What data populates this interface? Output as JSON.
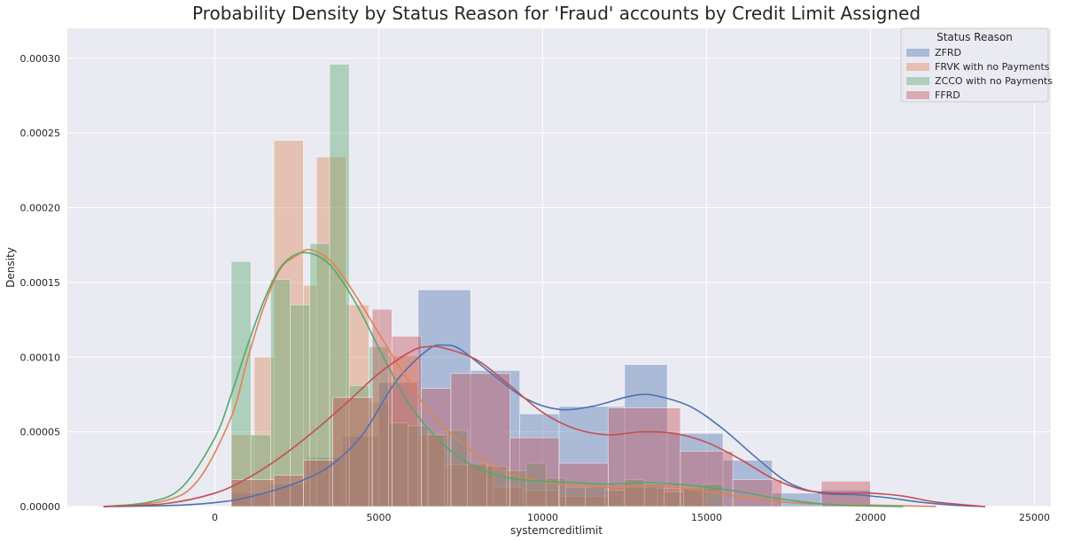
{
  "chart_data": {
    "type": "histogram_kde",
    "title": "Probability Density by Status Reason for 'Fraud' accounts by Credit Limit Assigned",
    "xlabel": "systemcreditlimit",
    "ylabel": "Density",
    "xlim": [
      -4500,
      25500
    ],
    "ylim": [
      0,
      0.00032
    ],
    "xticks": [
      0,
      5000,
      10000,
      15000,
      20000,
      25000
    ],
    "xtick_labels": [
      "0",
      "5000",
      "10000",
      "15000",
      "20000",
      "25000"
    ],
    "yticks": [
      0,
      5e-05,
      0.0001,
      0.00015,
      0.0002,
      0.00025,
      0.0003
    ],
    "ytick_labels": [
      "0.00000",
      "0.00005",
      "0.00010",
      "0.00015",
      "0.00020",
      "0.00025",
      "0.00030"
    ],
    "grid": true,
    "background": "#eaeaf2",
    "legend": {
      "title": "Status Reason",
      "position": "top-right"
    },
    "series": [
      {
        "name": "ZFRD",
        "color": "#4c72b0",
        "bins": [
          {
            "x0": 500,
            "x1": 1700,
            "y": 9e-06
          },
          {
            "x0": 1700,
            "x1": 2800,
            "y": 1.5e-05
          },
          {
            "x0": 2800,
            "x1": 3900,
            "y": 3.3e-05
          },
          {
            "x0": 3900,
            "x1": 5000,
            "y": 4.7e-05
          },
          {
            "x0": 5000,
            "x1": 6200,
            "y": 8.3e-05
          },
          {
            "x0": 6200,
            "x1": 7800,
            "y": 0.000145
          },
          {
            "x0": 7800,
            "x1": 9300,
            "y": 9.1e-05
          },
          {
            "x0": 9300,
            "x1": 10500,
            "y": 6.2e-05
          },
          {
            "x0": 10500,
            "x1": 12500,
            "y": 6.7e-05
          },
          {
            "x0": 12500,
            "x1": 13800,
            "y": 9.5e-05
          },
          {
            "x0": 13800,
            "x1": 15500,
            "y": 4.9e-05
          },
          {
            "x0": 15500,
            "x1": 17000,
            "y": 3.1e-05
          },
          {
            "x0": 17000,
            "x1": 18500,
            "y": 9e-06
          },
          {
            "x0": 18500,
            "x1": 20000,
            "y": 1.1e-05
          }
        ],
        "kde": {
          "x": [
            -3400,
            -1000,
            500,
            1500,
            2500,
            3500,
            4500,
            5500,
            6500,
            7000,
            7500,
            8500,
            9500,
            10500,
            11500,
            12500,
            13000,
            13500,
            14500,
            15500,
            16500,
            17500,
            18500,
            19500,
            20500,
            21500,
            22500,
            23500
          ],
          "y": [
            0,
            1e-06,
            4e-06,
            9e-06,
            1.6e-05,
            2.7e-05,
            4.8e-05,
            8.3e-05,
            0.000105,
            0.000108,
            0.000105,
            8.8e-05,
            7.2e-05,
            6.5e-05,
            6.7e-05,
            7.3e-05,
            7.5e-05,
            7.4e-05,
            6.7e-05,
            5.2e-05,
            3.3e-05,
            1.6e-05,
            9e-06,
            8e-06,
            6e-06,
            3e-06,
            1e-06,
            0
          ]
        }
      },
      {
        "name": "FRVK with no Payments",
        "color": "#dd8452",
        "bins": [
          {
            "x0": 500,
            "x1": 1200,
            "y": 4.8e-05
          },
          {
            "x0": 1200,
            "x1": 1800,
            "y": 0.0001
          },
          {
            "x0": 1800,
            "x1": 2700,
            "y": 0.000245
          },
          {
            "x0": 2700,
            "x1": 3100,
            "y": 0.000148
          },
          {
            "x0": 3100,
            "x1": 4000,
            "y": 0.000234
          },
          {
            "x0": 4000,
            "x1": 4700,
            "y": 0.000135
          },
          {
            "x0": 4700,
            "x1": 5300,
            "y": 7e-05
          },
          {
            "x0": 5300,
            "x1": 6200,
            "y": 0.000101
          },
          {
            "x0": 6200,
            "x1": 7000,
            "y": 4.8e-05
          },
          {
            "x0": 7000,
            "x1": 8500,
            "y": 2.8e-05
          },
          {
            "x0": 8500,
            "x1": 9400,
            "y": 1.3e-05
          },
          {
            "x0": 9400,
            "x1": 10500,
            "y": 1.1e-05
          },
          {
            "x0": 10500,
            "x1": 12000,
            "y": 7e-06
          },
          {
            "x0": 12000,
            "x1": 13500,
            "y": 1.3e-05
          },
          {
            "x0": 13500,
            "x1": 15000,
            "y": 1.2e-05
          }
        ],
        "kde": {
          "x": [
            -3400,
            -1500,
            -500,
            500,
            1000,
            1500,
            2000,
            2500,
            2900,
            3500,
            4000,
            4500,
            5000,
            5500,
            6000,
            6500,
            7500,
            8500,
            9500,
            10500,
            12000,
            13000,
            14000,
            15000,
            16500,
            18000,
            20000,
            22000
          ],
          "y": [
            0,
            4e-06,
            1.8e-05,
            6e-05,
            9.9e-05,
            0.000134,
            0.000159,
            0.000168,
            0.000172,
            0.000165,
            0.000151,
            0.000134,
            0.000116,
            9.8e-05,
            8.1e-05,
            6.5e-05,
            4.3e-05,
            2.7e-05,
            1.9e-05,
            1.5e-05,
            1.3e-05,
            1.4e-05,
            1.3e-05,
            1e-05,
            5e-06,
            2e-06,
            1e-06,
            0
          ]
        }
      },
      {
        "name": "ZCCO with no Payments",
        "color": "#55a868",
        "bins": [
          {
            "x0": 500,
            "x1": 1100,
            "y": 0.000164
          },
          {
            "x0": 1100,
            "x1": 1700,
            "y": 4.8e-05
          },
          {
            "x0": 1700,
            "x1": 2300,
            "y": 0.000152
          },
          {
            "x0": 2300,
            "x1": 2900,
            "y": 0.000135
          },
          {
            "x0": 2900,
            "x1": 3500,
            "y": 0.000176
          },
          {
            "x0": 3500,
            "x1": 4100,
            "y": 0.000296
          },
          {
            "x0": 4100,
            "x1": 4700,
            "y": 8.1e-05
          },
          {
            "x0": 4700,
            "x1": 5300,
            "y": 0.000107
          },
          {
            "x0": 5300,
            "x1": 5900,
            "y": 5.6e-05
          },
          {
            "x0": 5900,
            "x1": 6500,
            "y": 5.4e-05
          },
          {
            "x0": 6500,
            "x1": 7100,
            "y": 4.8e-05
          },
          {
            "x0": 7100,
            "x1": 7700,
            "y": 5.1e-05
          },
          {
            "x0": 7700,
            "x1": 8300,
            "y": 2.9e-05
          },
          {
            "x0": 8300,
            "x1": 8900,
            "y": 2.7e-05
          },
          {
            "x0": 8900,
            "x1": 9500,
            "y": 2.4e-05
          },
          {
            "x0": 9500,
            "x1": 10100,
            "y": 2.9e-05
          },
          {
            "x0": 10100,
            "x1": 10700,
            "y": 1.9e-05
          },
          {
            "x0": 10700,
            "x1": 11300,
            "y": 1.3e-05
          },
          {
            "x0": 11300,
            "x1": 11900,
            "y": 1.3e-05
          },
          {
            "x0": 11900,
            "x1": 12500,
            "y": 1.1e-05
          },
          {
            "x0": 12500,
            "x1": 13100,
            "y": 1.8e-05
          },
          {
            "x0": 13100,
            "x1": 13700,
            "y": 1.5e-05
          },
          {
            "x0": 13700,
            "x1": 14300,
            "y": 1e-05
          },
          {
            "x0": 14300,
            "x1": 14900,
            "y": 1.3e-05
          },
          {
            "x0": 14900,
            "x1": 15500,
            "y": 1.5e-05
          }
        ],
        "kde": {
          "x": [
            -3400,
            -2000,
            -1000,
            0,
            500,
            1000,
            1500,
            2000,
            2500,
            3000,
            3500,
            4000,
            4500,
            5000,
            5500,
            6000,
            7000,
            8000,
            9000,
            10000,
            11000,
            12000,
            13000,
            14000,
            15000,
            16000,
            17000,
            18000,
            19000,
            21000
          ],
          "y": [
            0,
            3e-06,
            1.3e-05,
            4.6e-05,
            7.5e-05,
            0.000108,
            0.000138,
            0.00016,
            0.000169,
            0.000169,
            0.000162,
            0.000147,
            0.000128,
            0.000106,
            8.5e-05,
            6.6e-05,
            4.1e-05,
            2.6e-05,
            1.9e-05,
            1.7e-05,
            1.6e-05,
            1.5e-05,
            1.6e-05,
            1.5e-05,
            1.3e-05,
            1e-05,
            6e-06,
            3e-06,
            1e-06,
            0
          ]
        }
      },
      {
        "name": "FFRD",
        "color": "#c44e52",
        "bins": [
          {
            "x0": 500,
            "x1": 1800,
            "y": 1.8e-05
          },
          {
            "x0": 1800,
            "x1": 2700,
            "y": 2.1e-05
          },
          {
            "x0": 2700,
            "x1": 3600,
            "y": 3.1e-05
          },
          {
            "x0": 3600,
            "x1": 4800,
            "y": 7.3e-05
          },
          {
            "x0": 4800,
            "x1": 5400,
            "y": 0.000132
          },
          {
            "x0": 5400,
            "x1": 6300,
            "y": 0.000114
          },
          {
            "x0": 6300,
            "x1": 7200,
            "y": 7.9e-05
          },
          {
            "x0": 7200,
            "x1": 9000,
            "y": 8.9e-05
          },
          {
            "x0": 9000,
            "x1": 10500,
            "y": 4.6e-05
          },
          {
            "x0": 10500,
            "x1": 12000,
            "y": 2.9e-05
          },
          {
            "x0": 12000,
            "x1": 14200,
            "y": 6.6e-05
          },
          {
            "x0": 14200,
            "x1": 15800,
            "y": 3.7e-05
          },
          {
            "x0": 15800,
            "x1": 17300,
            "y": 1.8e-05
          },
          {
            "x0": 18500,
            "x1": 20000,
            "y": 1.7e-05
          }
        ],
        "kde": {
          "x": [
            -3400,
            -1500,
            0,
            1000,
            2000,
            3000,
            4000,
            5000,
            6000,
            6500,
            7000,
            8000,
            9000,
            10000,
            11000,
            12000,
            13000,
            14000,
            15000,
            16000,
            17000,
            18000,
            19000,
            20000,
            21000,
            22000,
            23500
          ],
          "y": [
            0,
            2e-06,
            9e-06,
            1.9e-05,
            3.3e-05,
            5e-05,
            6.9e-05,
            8.9e-05,
            0.000104,
            0.000107,
            0.000106,
            9.8e-05,
            8.1e-05,
            6.3e-05,
            5.2e-05,
            4.8e-05,
            5e-05,
            4.9e-05,
            4.3e-05,
            3.2e-05,
            1.9e-05,
            1.1e-05,
            9e-06,
            9e-06,
            7e-06,
            3e-06,
            0
          ]
        }
      }
    ]
  }
}
